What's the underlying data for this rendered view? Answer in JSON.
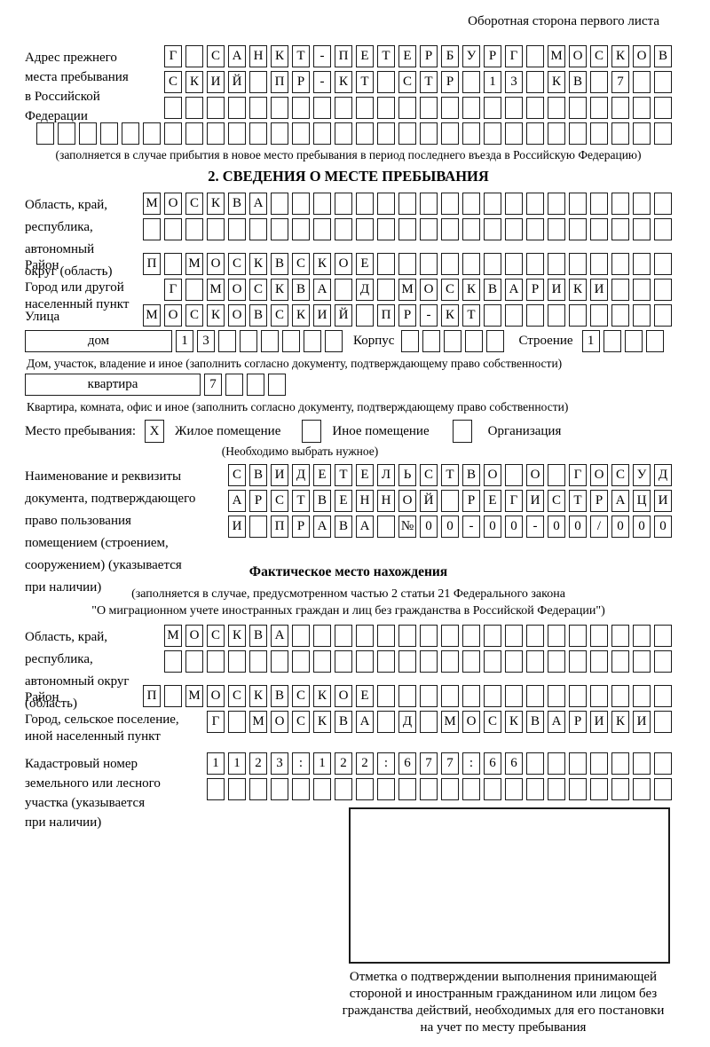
{
  "page": {
    "corner_note": "Оборотная сторона первого листа"
  },
  "prev_address": {
    "label": [
      "Адрес прежнего",
      "места пребывания",
      "в Российской",
      "Федерации"
    ],
    "rows": [
      [
        "Г",
        "",
        "С",
        "А",
        "Н",
        "К",
        "Т",
        "-",
        "П",
        "Е",
        "Т",
        "Е",
        "Р",
        "Б",
        "У",
        "Р",
        "Г",
        "",
        "М",
        "О",
        "С",
        "К",
        "О",
        "В"
      ],
      [
        "С",
        "К",
        "И",
        "Й",
        "",
        "П",
        "Р",
        "-",
        "К",
        "Т",
        "",
        "С",
        "Т",
        "Р",
        "",
        "1",
        "3",
        "",
        "К",
        "В",
        "",
        "7",
        "",
        ""
      ],
      [
        "",
        "",
        "",
        "",
        "",
        "",
        "",
        "",
        "",
        "",
        "",
        "",
        "",
        "",
        "",
        "",
        "",
        "",
        "",
        "",
        "",
        "",
        "",
        ""
      ]
    ],
    "full_row": [
      "",
      "",
      "",
      "",
      "",
      "",
      "",
      "",
      "",
      "",
      "",
      "",
      "",
      "",
      "",
      "",
      "",
      "",
      "",
      "",
      "",
      "",
      "",
      "",
      "",
      "",
      "",
      "",
      "",
      ""
    ],
    "caption": "(заполняется в случае прибытия в новое место пребывания в период последнего въезда в Российскую Федерацию)"
  },
  "section2": {
    "title": "2. СВЕДЕНИЯ О МЕСТЕ ПРЕБЫВАНИЯ",
    "region": {
      "label": [
        "Область, край,",
        "республика,",
        "автономный",
        "округ (область)"
      ],
      "rows": [
        [
          "М",
          "О",
          "С",
          "К",
          "В",
          "А",
          "",
          "",
          "",
          "",
          "",
          "",
          "",
          "",
          "",
          "",
          "",
          "",
          "",
          "",
          "",
          "",
          "",
          "",
          ""
        ],
        [
          "",
          "",
          "",
          "",
          "",
          "",
          "",
          "",
          "",
          "",
          "",
          "",
          "",
          "",
          "",
          "",
          "",
          "",
          "",
          "",
          "",
          "",
          "",
          "",
          ""
        ]
      ]
    },
    "district_label": "Район",
    "district_cells": [
      "П",
      "",
      "М",
      "О",
      "С",
      "К",
      "В",
      "С",
      "К",
      "О",
      "Е",
      "",
      "",
      "",
      "",
      "",
      "",
      "",
      "",
      "",
      "",
      "",
      "",
      "",
      ""
    ],
    "city": {
      "label": [
        "Город или другой",
        "населенный пункт"
      ],
      "cells": [
        "Г",
        "",
        "М",
        "О",
        "С",
        "К",
        "В",
        "А",
        "",
        "Д",
        "",
        "М",
        "О",
        "С",
        "К",
        "В",
        "А",
        "Р",
        "И",
        "К",
        "И",
        "",
        "",
        ""
      ]
    },
    "street_label": "Улица",
    "street_cells": [
      "М",
      "О",
      "С",
      "К",
      "О",
      "В",
      "С",
      "К",
      "И",
      "Й",
      "",
      "П",
      "Р",
      "-",
      "К",
      "Т",
      "",
      "",
      "",
      "",
      "",
      "",
      "",
      "",
      ""
    ],
    "house": {
      "house_label": "дом",
      "house_cells": [
        "1",
        "3",
        "",
        "",
        "",
        "",
        "",
        ""
      ],
      "korpus_label": "Корпус",
      "korpus_cells": [
        "",
        "",
        "",
        "",
        ""
      ],
      "stroenie_label": "Строение",
      "stroenie_cells": [
        "1",
        "",
        "",
        ""
      ]
    },
    "house_caption": "Дом, участок, владение и иное (заполнить согласно документу, подтверждающему право собственности)",
    "apartment": {
      "label": "квартира",
      "cells": [
        "7",
        "",
        "",
        ""
      ]
    },
    "apartment_caption": "Квартира, комната, офис и иное (заполнить согласно документу, подтверждающему право собственности)",
    "stay": {
      "label": "Место пребывания:",
      "options": [
        {
          "mark": "X",
          "label": "Жилое помещение"
        },
        {
          "mark": "",
          "label": "Иное помещение"
        },
        {
          "mark": "",
          "label": "Организация"
        }
      ],
      "caption": "(Необходимо выбрать нужное)"
    },
    "doc": {
      "label": [
        "Наименование и реквизиты",
        "документа, подтверждающего",
        "право пользования",
        "помещением (строением,",
        "сооружением) (указывается",
        "при наличии)"
      ],
      "rows": [
        [
          "С",
          "В",
          "И",
          "Д",
          "Е",
          "Т",
          "Е",
          "Л",
          "Ь",
          "С",
          "Т",
          "В",
          "О",
          "",
          "О",
          "",
          "Г",
          "О",
          "С",
          "У",
          "Д"
        ],
        [
          "А",
          "Р",
          "С",
          "Т",
          "В",
          "Е",
          "Н",
          "Н",
          "О",
          "Й",
          "",
          "Р",
          "Е",
          "Г",
          "И",
          "С",
          "Т",
          "Р",
          "А",
          "Ц",
          "И"
        ],
        [
          "И",
          "",
          "П",
          "Р",
          "А",
          "В",
          "А",
          "",
          "№",
          "0",
          "0",
          "-",
          "0",
          "0",
          "-",
          "0",
          "0",
          "/",
          "0",
          "0",
          "0"
        ]
      ]
    }
  },
  "actual_location": {
    "title": "Фактическое место нахождения",
    "note": [
      "(заполняется в случае, предусмотренном частью 2 статьи 21 Федерального закона",
      "\"О миграционном учете иностранных граждан и лиц без гражданства в Российской Федерации\")"
    ],
    "region": {
      "label": [
        "Область, край,",
        "республика,",
        "автономный округ",
        "(область)"
      ],
      "rows": [
        [
          "М",
          "О",
          "С",
          "К",
          "В",
          "А",
          "",
          "",
          "",
          "",
          "",
          "",
          "",
          "",
          "",
          "",
          "",
          "",
          "",
          "",
          "",
          "",
          "",
          ""
        ],
        [
          "",
          "",
          "",
          "",
          "",
          "",
          "",
          "",
          "",
          "",
          "",
          "",
          "",
          "",
          "",
          "",
          "",
          "",
          "",
          "",
          "",
          "",
          "",
          ""
        ]
      ]
    },
    "district_label": "Район",
    "district_cells": [
      "П",
      "",
      "М",
      "О",
      "С",
      "К",
      "В",
      "С",
      "К",
      "О",
      "Е",
      "",
      "",
      "",
      "",
      "",
      "",
      "",
      "",
      "",
      "",
      "",
      "",
      "",
      ""
    ],
    "city": {
      "label": [
        "Город, сельское поселение,",
        "иной населенный пункт"
      ],
      "cells": [
        "Г",
        "",
        "М",
        "О",
        "С",
        "К",
        "В",
        "А",
        "",
        "Д",
        "",
        "М",
        "О",
        "С",
        "К",
        "В",
        "А",
        "Р",
        "И",
        "К",
        "И",
        ""
      ]
    },
    "cadastral": {
      "label": [
        "Кадастровый номер",
        "земельного или лесного",
        "участка (указывается",
        "при наличии)"
      ],
      "rows": [
        [
          "1",
          "1",
          "2",
          "3",
          ":",
          "1",
          "2",
          "2",
          ":",
          "6",
          "7",
          "7",
          ":",
          "6",
          "6",
          "",
          "",
          "",
          "",
          "",
          "",
          ""
        ],
        [
          "",
          "",
          "",
          "",
          "",
          "",
          "",
          "",
          "",
          "",
          "",
          "",
          "",
          "",
          "",
          "",
          "",
          "",
          "",
          "",
          "",
          ""
        ]
      ]
    }
  },
  "confirmation": {
    "note": [
      "Отметка о подтверждении выполнения принимающей",
      "стороной и иностранным гражданином или лицом без",
      "гражданства действий, необходимых для его постановки",
      "на учет по месту пребывания"
    ]
  }
}
